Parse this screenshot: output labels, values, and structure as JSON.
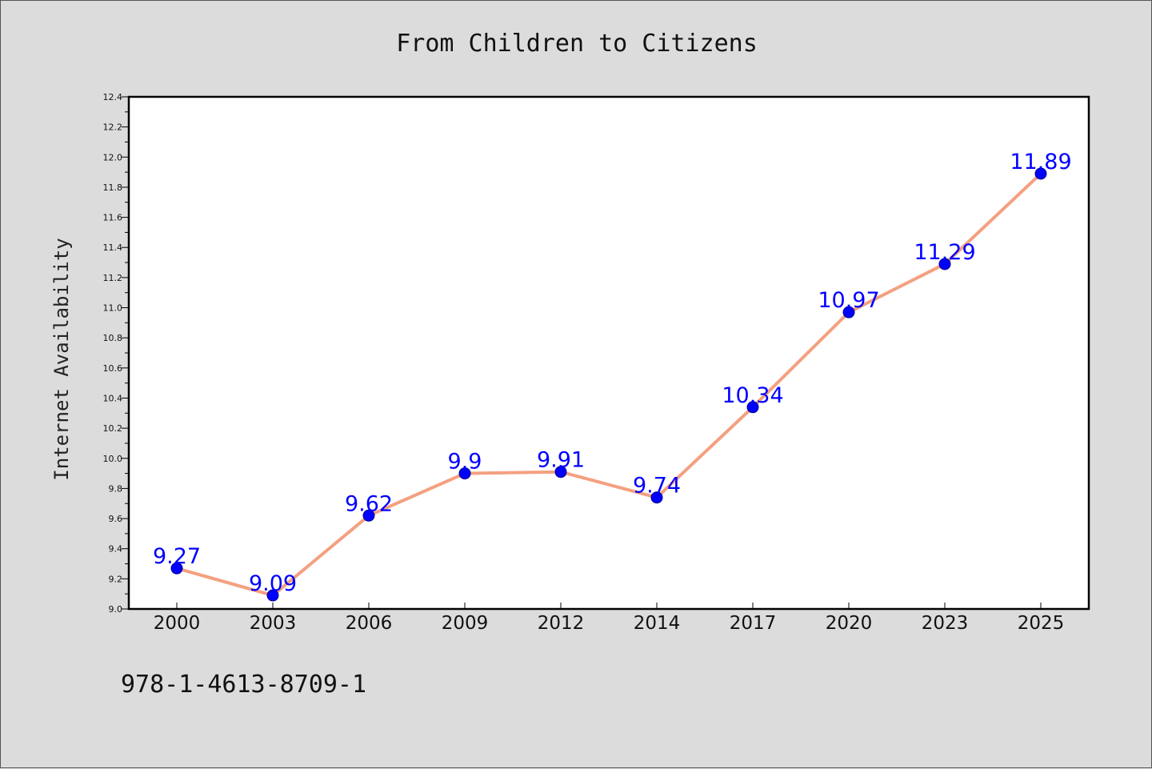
{
  "chart_data": {
    "type": "line",
    "title": "From Children to Citizens",
    "xlabel": "",
    "ylabel": "Internet Availability",
    "categories": [
      "2000",
      "2003",
      "2006",
      "2009",
      "2012",
      "2014",
      "2017",
      "2020",
      "2023",
      "2025"
    ],
    "series": [
      {
        "values": [
          9.27,
          9.09,
          9.62,
          9.9,
          9.91,
          9.74,
          10.34,
          10.97,
          11.29,
          11.89
        ],
        "data_labels": [
          "9.27",
          "9.09",
          "9.62",
          "9.9",
          "9.91",
          "9.74",
          "10.34",
          "10.97",
          "11.29",
          "11.89"
        ],
        "line_color": "#f4a080",
        "marker_color": "#0000ff"
      }
    ],
    "ylim": [
      9.0,
      12.4
    ],
    "yticks": [
      "9.0",
      "9.2",
      "9.4",
      "9.6",
      "9.8",
      "10.0",
      "10.2",
      "10.4",
      "10.6",
      "10.8",
      "11.0",
      "11.2",
      "11.4",
      "11.6",
      "11.8",
      "12.0",
      "12.2",
      "12.4"
    ],
    "grid": false,
    "legend": "none"
  },
  "footer": {
    "isbn": "978-1-4613-8709-1"
  },
  "colors": {
    "background": "#dcdcdc",
    "plot_background": "#ffffff",
    "line": "#f4a080",
    "marker": "#0000ff",
    "data_label": "#0000ff"
  }
}
